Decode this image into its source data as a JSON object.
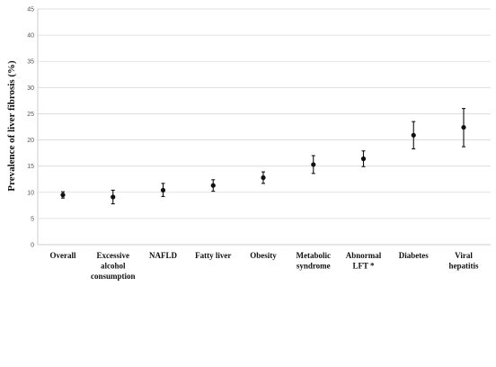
{
  "chart_data": {
    "type": "scatter",
    "ylabel": "Prevalence of liver fibrosis  (%)",
    "xlabel": "",
    "ylim": [
      0,
      45
    ],
    "yticks": [
      0,
      5,
      10,
      15,
      20,
      25,
      30,
      35,
      40,
      45
    ],
    "grid": true,
    "categories": [
      [
        "Overall"
      ],
      [
        "Excessive",
        "alcohol",
        "consumption"
      ],
      [
        "NAFLD"
      ],
      [
        "Fatty liver"
      ],
      [
        "Obesity"
      ],
      [
        "Metabolic",
        "syndrome"
      ],
      [
        "Abnormal",
        "LFT *"
      ],
      [
        "Diabetes"
      ],
      [
        "Viral",
        "hepatitis"
      ]
    ],
    "series": [
      {
        "values": [
          9.5,
          9.1,
          10.4,
          11.3,
          12.8,
          15.3,
          16.4,
          20.9,
          22.4
        ],
        "lower": [
          8.9,
          7.8,
          9.2,
          10.2,
          11.7,
          13.6,
          14.9,
          18.3,
          18.7
        ],
        "upper": [
          10.1,
          10.4,
          11.7,
          12.4,
          13.9,
          17.0,
          17.9,
          23.5,
          26.0
        ]
      }
    ]
  }
}
